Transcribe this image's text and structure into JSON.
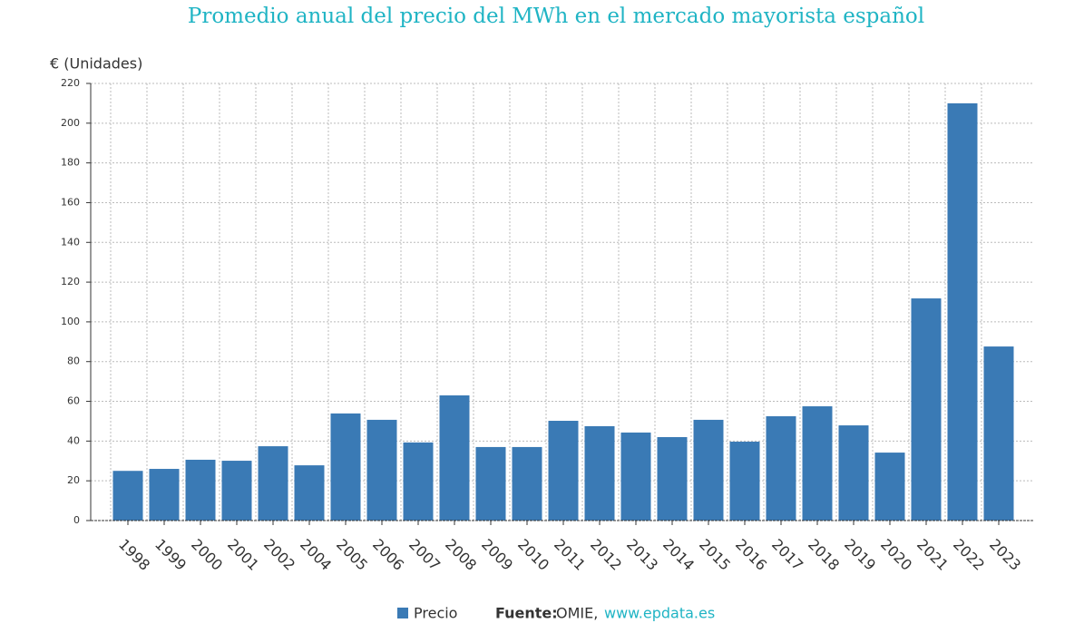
{
  "chart_data": {
    "type": "bar",
    "title": "Promedio anual del precio del MWh en el mercado mayorista español",
    "y_label": "€ (Unidades)",
    "categories": [
      "1998",
      "1999",
      "2000",
      "2001",
      "2002",
      "2004",
      "2005",
      "2006",
      "2007",
      "2008",
      "2009",
      "2010",
      "2011",
      "2012",
      "2013",
      "2014",
      "2015",
      "2016",
      "2017",
      "2018",
      "2019",
      "2020",
      "2021",
      "2022",
      "2023"
    ],
    "series": [
      {
        "name": "Precio",
        "color": "#3a7ab5",
        "values": [
          25,
          26,
          30.6,
          30.1,
          37.4,
          27.8,
          53.9,
          50.7,
          39.3,
          63,
          37,
          37,
          50.2,
          47.5,
          44.3,
          42,
          50.7,
          39.7,
          52.5,
          57.5,
          47.9,
          34.2,
          111.8,
          210,
          87.6
        ]
      }
    ],
    "ylim": [
      0,
      220
    ],
    "yticks": [
      0,
      20,
      40,
      60,
      80,
      100,
      120,
      140,
      160,
      180,
      200,
      220
    ],
    "grid": true,
    "source_label": "Fuente:",
    "source": "OMIE,",
    "source_url": "www.epdata.es"
  }
}
